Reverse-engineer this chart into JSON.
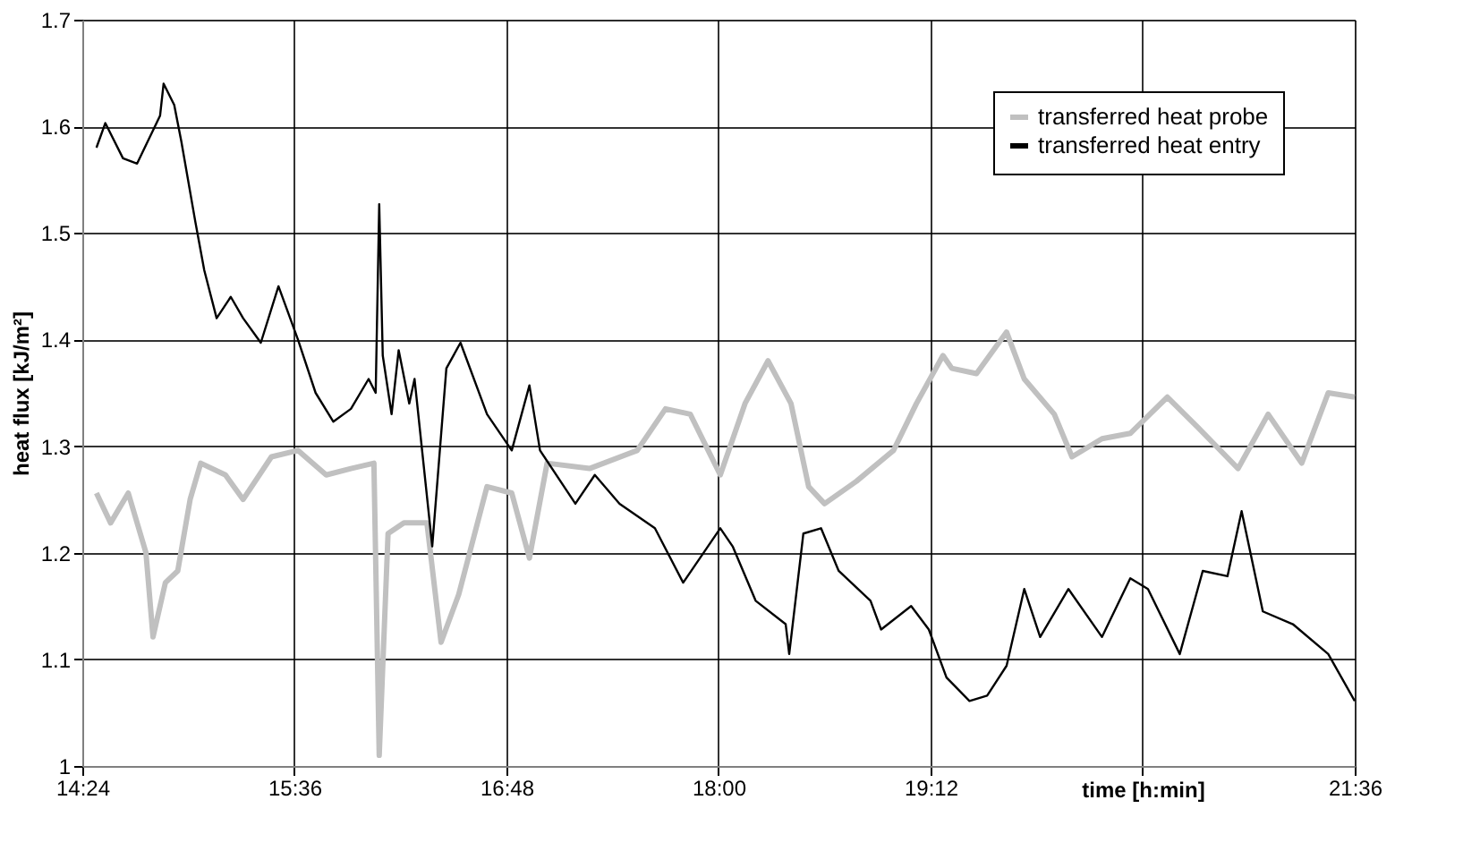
{
  "chart_data": {
    "type": "line",
    "xlabel": "time [h:min]",
    "ylabel": "heat flux [kJ/m²]",
    "xlim": [
      14.4,
      21.6
    ],
    "xticks": [
      {
        "value": 14.4,
        "label": "14:24"
      },
      {
        "value": 15.6,
        "label": "15:36"
      },
      {
        "value": 16.8,
        "label": "16:48"
      },
      {
        "value": 18.0,
        "label": "18:00"
      },
      {
        "value": 19.2,
        "label": "19:12"
      },
      {
        "value": 20.4,
        "label": null
      },
      {
        "value": 21.6,
        "label": "21:36"
      }
    ],
    "ylim": [
      1,
      1.7
    ],
    "yticks": [
      1,
      1.1,
      1.2,
      1.3,
      1.4,
      1.5,
      1.6,
      1.7
    ],
    "grid": true,
    "legend": "top right",
    "line_style": "solid",
    "marker": "none",
    "series": [
      {
        "name": "transferred heat probe",
        "color": "#c0c0c0",
        "x": [
          14.48,
          14.56,
          14.66,
          14.76,
          14.8,
          14.87,
          14.94,
          15.01,
          15.07,
          15.21,
          15.31,
          15.47,
          15.62,
          15.78,
          15.92,
          16.05,
          16.08,
          16.13,
          16.22,
          16.35,
          16.43,
          16.53,
          16.69,
          16.83,
          16.93,
          17.03,
          17.27,
          17.54,
          17.7,
          17.84,
          18.01,
          18.15,
          18.28,
          18.41,
          18.51,
          18.6,
          18.78,
          18.99,
          19.12,
          19.27,
          19.32,
          19.46,
          19.63,
          19.73,
          19.9,
          20.0,
          20.17,
          20.33,
          20.54,
          20.71,
          20.94,
          21.11,
          21.3,
          21.45,
          21.6
        ],
        "values": [
          1.256,
          1.228,
          1.256,
          1.2,
          1.121,
          1.172,
          1.183,
          1.25,
          1.284,
          1.273,
          1.25,
          1.29,
          1.296,
          1.273,
          1.279,
          1.284,
          1.01,
          1.218,
          1.228,
          1.228,
          1.116,
          1.161,
          1.262,
          1.256,
          1.195,
          1.284,
          1.279,
          1.296,
          1.335,
          1.33,
          1.273,
          1.34,
          1.38,
          1.34,
          1.262,
          1.246,
          1.267,
          1.296,
          1.34,
          1.385,
          1.373,
          1.368,
          1.407,
          1.363,
          1.33,
          1.29,
          1.307,
          1.312,
          1.346,
          1.318,
          1.279,
          1.33,
          1.284,
          1.35,
          1.346
        ]
      },
      {
        "name": "transferred heat entry",
        "color": "#000000",
        "x": [
          14.48,
          14.53,
          14.63,
          14.71,
          14.84,
          14.86,
          14.92,
          14.96,
          15.04,
          15.09,
          15.16,
          15.24,
          15.31,
          15.41,
          15.51,
          15.62,
          15.72,
          15.82,
          15.92,
          16.02,
          16.06,
          16.08,
          16.1,
          16.15,
          16.19,
          16.25,
          16.28,
          16.38,
          16.46,
          16.54,
          16.69,
          16.83,
          16.93,
          16.99,
          17.19,
          17.3,
          17.44,
          17.64,
          17.8,
          18.01,
          18.08,
          18.21,
          18.38,
          18.4,
          18.48,
          18.58,
          18.68,
          18.86,
          18.92,
          19.09,
          19.19,
          19.29,
          19.42,
          19.52,
          19.63,
          19.73,
          19.82,
          19.98,
          20.17,
          20.33,
          20.43,
          20.61,
          20.74,
          20.88,
          20.96,
          21.08,
          21.25,
          21.45,
          21.6
        ],
        "values": [
          1.58,
          1.603,
          1.57,
          1.565,
          1.61,
          1.64,
          1.62,
          1.586,
          1.51,
          1.465,
          1.42,
          1.44,
          1.42,
          1.397,
          1.45,
          1.4,
          1.35,
          1.323,
          1.335,
          1.363,
          1.35,
          1.527,
          1.385,
          1.33,
          1.39,
          1.34,
          1.363,
          1.206,
          1.373,
          1.397,
          1.33,
          1.296,
          1.357,
          1.296,
          1.246,
          1.273,
          1.246,
          1.223,
          1.172,
          1.223,
          1.206,
          1.155,
          1.133,
          1.105,
          1.218,
          1.223,
          1.183,
          1.155,
          1.128,
          1.15,
          1.128,
          1.083,
          1.061,
          1.066,
          1.094,
          1.166,
          1.121,
          1.166,
          1.121,
          1.176,
          1.166,
          1.105,
          1.183,
          1.178,
          1.239,
          1.145,
          1.133,
          1.105,
          1.061
        ]
      }
    ]
  }
}
